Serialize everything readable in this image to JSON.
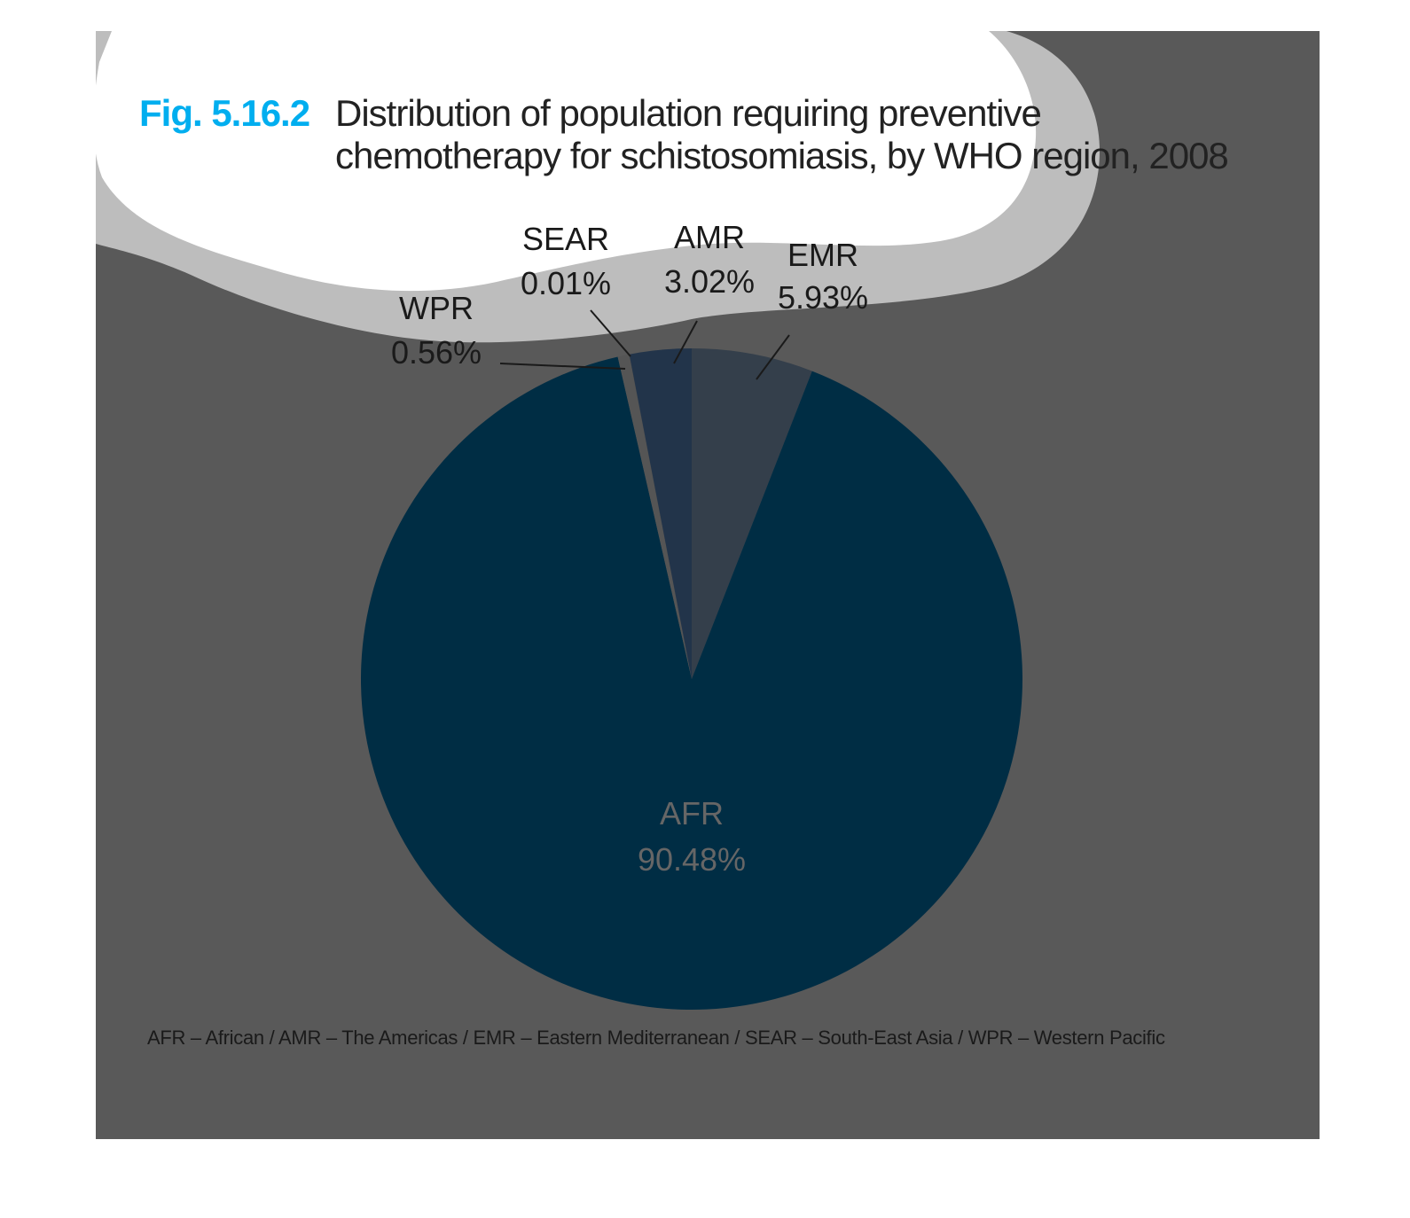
{
  "figure": {
    "label": "Fig. 5.16.2",
    "title": "Distribution of population requiring preventive chemotherapy for schistosomiasis, by WHO region, 2008",
    "footnote": "AFR – African / AMR – The Americas / EMR – Eastern Mediterranean / SEAR – South-East Asia / WPR – Western Pacific"
  },
  "colors": {
    "background": "#595959",
    "cloud_shadow": "#bdbdbd",
    "cloud": "#ffffff",
    "label_dark": "#1a1a1a",
    "label_light": "#666666",
    "title_accent": "#00aeef"
  },
  "chart_data": {
    "type": "pie",
    "title": "Distribution of population requiring preventive chemotherapy for schistosomiasis, by WHO region, 2008",
    "unit": "%",
    "slices": [
      {
        "label": "EMR",
        "value": 5.93,
        "display": "5.93%",
        "color": "#343f4b"
      },
      {
        "label": "AFR",
        "value": 90.48,
        "display": "90.48%",
        "color": "#002d44"
      },
      {
        "label": "WPR",
        "value": 0.56,
        "display": "0.56%",
        "color": "#555555"
      },
      {
        "label": "SEAR",
        "value": 0.01,
        "display": "0.01%",
        "color": "#4a4a4a"
      },
      {
        "label": "AMR",
        "value": 3.02,
        "display": "3.02%",
        "color": "#22344a"
      }
    ]
  }
}
